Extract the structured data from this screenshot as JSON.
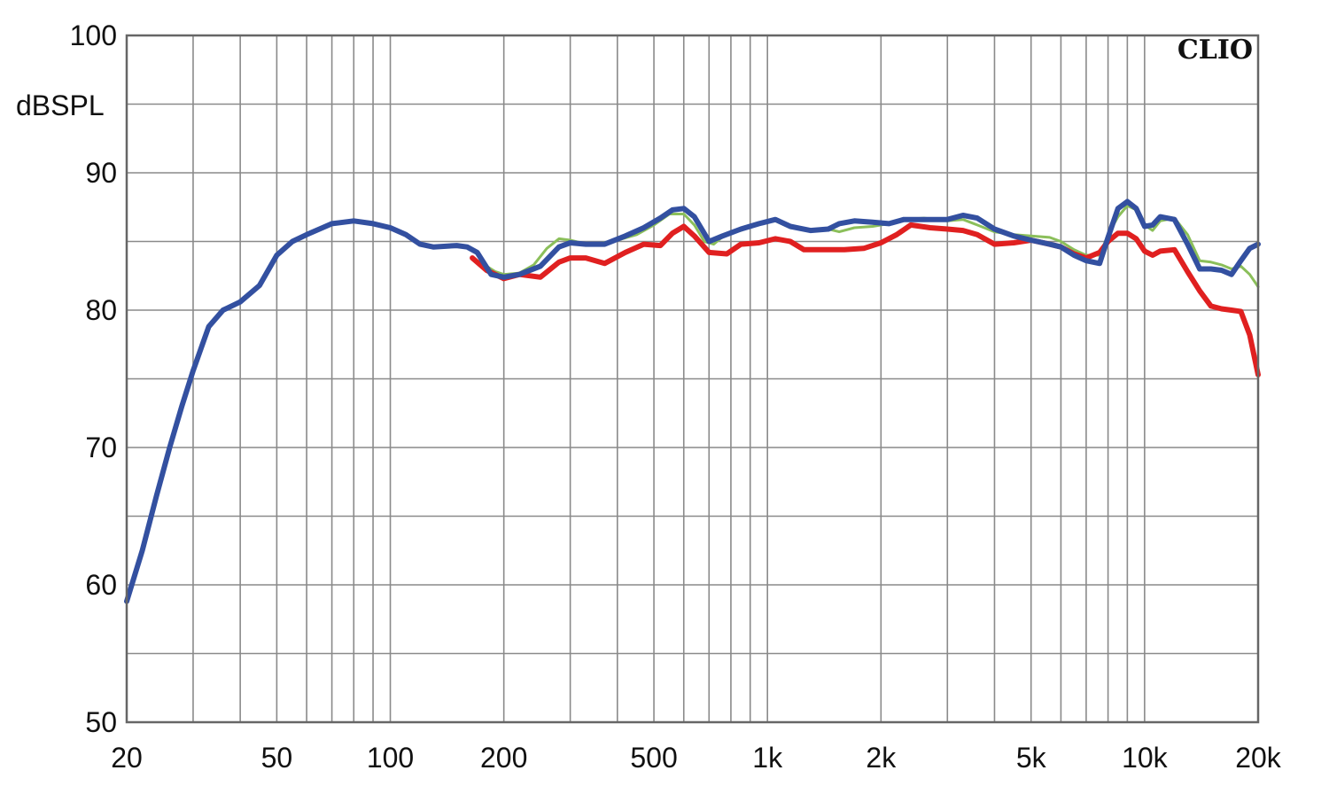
{
  "chart_data": {
    "type": "line",
    "brand_label": "CLIO",
    "ylabel": "dBSPL",
    "xlabel": "",
    "x_scale": "log",
    "xlim": [
      20,
      20000
    ],
    "ylim": [
      50,
      100
    ],
    "grid": true,
    "x_ticks": [
      {
        "value": 20,
        "label": "20"
      },
      {
        "value": 50,
        "label": "50"
      },
      {
        "value": 100,
        "label": "100"
      },
      {
        "value": 200,
        "label": "200"
      },
      {
        "value": 500,
        "label": "500"
      },
      {
        "value": 1000,
        "label": "1k"
      },
      {
        "value": 2000,
        "label": "2k"
      },
      {
        "value": 5000,
        "label": "5k"
      },
      {
        "value": 10000,
        "label": "10k"
      },
      {
        "value": 20000,
        "label": "20k"
      }
    ],
    "y_ticks": [
      {
        "value": 100,
        "label": "100"
      },
      {
        "value": 90,
        "label": "90"
      },
      {
        "value": 80,
        "label": "80"
      },
      {
        "value": 70,
        "label": "70"
      },
      {
        "value": 60,
        "label": "60"
      },
      {
        "value": 50,
        "label": "50"
      }
    ],
    "series": [
      {
        "color": "#8bbf5a",
        "width": 3,
        "points": [
          [
            180,
            83.2
          ],
          [
            190,
            82.8
          ],
          [
            200,
            82.6
          ],
          [
            220,
            82.7
          ],
          [
            240,
            83.3
          ],
          [
            260,
            84.5
          ],
          [
            280,
            85.2
          ],
          [
            300,
            85.1
          ],
          [
            320,
            84.9
          ],
          [
            350,
            84.8
          ],
          [
            400,
            85.1
          ],
          [
            450,
            85.5
          ],
          [
            500,
            86.2
          ],
          [
            550,
            87.0
          ],
          [
            600,
            87.0
          ],
          [
            640,
            86.2
          ],
          [
            680,
            85.0
          ],
          [
            720,
            84.8
          ],
          [
            780,
            85.6
          ],
          [
            850,
            85.8
          ],
          [
            950,
            86.3
          ],
          [
            1050,
            86.5
          ],
          [
            1150,
            86.0
          ],
          [
            1300,
            85.8
          ],
          [
            1450,
            85.9
          ],
          [
            1550,
            85.7
          ],
          [
            1700,
            86.0
          ],
          [
            1900,
            86.1
          ],
          [
            2100,
            86.3
          ],
          [
            2300,
            86.6
          ],
          [
            2600,
            86.7
          ],
          [
            3000,
            86.5
          ],
          [
            3300,
            86.6
          ],
          [
            3600,
            86.2
          ],
          [
            4000,
            85.7
          ],
          [
            4500,
            85.5
          ],
          [
            5000,
            85.4
          ],
          [
            5600,
            85.3
          ],
          [
            6000,
            85.0
          ],
          [
            6500,
            84.4
          ],
          [
            7000,
            84.0
          ],
          [
            7600,
            84.0
          ],
          [
            8000,
            85.5
          ],
          [
            8500,
            86.8
          ],
          [
            9000,
            87.6
          ],
          [
            9500,
            87.3
          ],
          [
            10000,
            86.2
          ],
          [
            10500,
            85.8
          ],
          [
            11000,
            86.5
          ],
          [
            12000,
            86.7
          ],
          [
            13000,
            85.5
          ],
          [
            14000,
            83.6
          ],
          [
            15000,
            83.5
          ],
          [
            16000,
            83.3
          ],
          [
            17000,
            83.0
          ],
          [
            18000,
            83.2
          ],
          [
            19000,
            82.6
          ],
          [
            20000,
            81.7
          ]
        ]
      },
      {
        "color": "#e02020",
        "width": 6,
        "points": [
          [
            165,
            83.8
          ],
          [
            180,
            82.9
          ],
          [
            200,
            82.3
          ],
          [
            220,
            82.6
          ],
          [
            250,
            82.4
          ],
          [
            280,
            83.5
          ],
          [
            300,
            83.8
          ],
          [
            330,
            83.8
          ],
          [
            370,
            83.4
          ],
          [
            420,
            84.2
          ],
          [
            470,
            84.8
          ],
          [
            520,
            84.7
          ],
          [
            560,
            85.6
          ],
          [
            600,
            86.1
          ],
          [
            640,
            85.4
          ],
          [
            700,
            84.2
          ],
          [
            780,
            84.1
          ],
          [
            850,
            84.8
          ],
          [
            950,
            84.9
          ],
          [
            1050,
            85.2
          ],
          [
            1150,
            85.0
          ],
          [
            1250,
            84.4
          ],
          [
            1400,
            84.4
          ],
          [
            1600,
            84.4
          ],
          [
            1800,
            84.5
          ],
          [
            2000,
            84.9
          ],
          [
            2200,
            85.5
          ],
          [
            2400,
            86.2
          ],
          [
            2700,
            86.0
          ],
          [
            3000,
            85.9
          ],
          [
            3300,
            85.8
          ],
          [
            3600,
            85.5
          ],
          [
            4000,
            84.8
          ],
          [
            4500,
            84.9
          ],
          [
            5000,
            85.1
          ],
          [
            5600,
            84.8
          ],
          [
            6000,
            84.6
          ],
          [
            6500,
            84.1
          ],
          [
            7000,
            83.8
          ],
          [
            7600,
            84.2
          ],
          [
            8000,
            85.0
          ],
          [
            8500,
            85.6
          ],
          [
            9000,
            85.6
          ],
          [
            9500,
            85.2
          ],
          [
            10000,
            84.3
          ],
          [
            10500,
            84.0
          ],
          [
            11000,
            84.3
          ],
          [
            12000,
            84.4
          ],
          [
            13000,
            82.8
          ],
          [
            14000,
            81.4
          ],
          [
            15000,
            80.3
          ],
          [
            16000,
            80.1
          ],
          [
            17000,
            80.0
          ],
          [
            18000,
            79.9
          ],
          [
            19000,
            78.2
          ],
          [
            20000,
            75.3
          ]
        ]
      },
      {
        "color": "#3350a0",
        "width": 6,
        "points": [
          [
            20,
            58.8
          ],
          [
            22,
            62.5
          ],
          [
            24,
            66.5
          ],
          [
            26,
            70.0
          ],
          [
            28,
            73.0
          ],
          [
            30,
            75.6
          ],
          [
            33,
            78.8
          ],
          [
            36,
            80.0
          ],
          [
            40,
            80.6
          ],
          [
            45,
            81.8
          ],
          [
            50,
            84.0
          ],
          [
            55,
            85.0
          ],
          [
            60,
            85.5
          ],
          [
            70,
            86.3
          ],
          [
            80,
            86.5
          ],
          [
            90,
            86.3
          ],
          [
            100,
            86.0
          ],
          [
            110,
            85.5
          ],
          [
            120,
            84.8
          ],
          [
            130,
            84.6
          ],
          [
            150,
            84.7
          ],
          [
            160,
            84.6
          ],
          [
            170,
            84.2
          ],
          [
            185,
            82.6
          ],
          [
            200,
            82.4
          ],
          [
            220,
            82.6
          ],
          [
            250,
            83.2
          ],
          [
            280,
            84.6
          ],
          [
            300,
            84.9
          ],
          [
            330,
            84.8
          ],
          [
            370,
            84.8
          ],
          [
            420,
            85.4
          ],
          [
            470,
            86.0
          ],
          [
            520,
            86.7
          ],
          [
            560,
            87.3
          ],
          [
            600,
            87.4
          ],
          [
            640,
            86.8
          ],
          [
            700,
            85.0
          ],
          [
            760,
            85.4
          ],
          [
            850,
            85.9
          ],
          [
            950,
            86.3
          ],
          [
            1050,
            86.6
          ],
          [
            1150,
            86.1
          ],
          [
            1300,
            85.8
          ],
          [
            1450,
            85.9
          ],
          [
            1550,
            86.3
          ],
          [
            1700,
            86.5
          ],
          [
            1900,
            86.4
          ],
          [
            2100,
            86.3
          ],
          [
            2300,
            86.6
          ],
          [
            2600,
            86.6
          ],
          [
            3000,
            86.6
          ],
          [
            3300,
            86.9
          ],
          [
            3600,
            86.7
          ],
          [
            4000,
            85.9
          ],
          [
            4500,
            85.4
          ],
          [
            5000,
            85.1
          ],
          [
            5600,
            84.8
          ],
          [
            6000,
            84.6
          ],
          [
            6500,
            84.0
          ],
          [
            7000,
            83.6
          ],
          [
            7600,
            83.4
          ],
          [
            8000,
            85.3
          ],
          [
            8500,
            87.4
          ],
          [
            9000,
            87.9
          ],
          [
            9500,
            87.4
          ],
          [
            10000,
            86.1
          ],
          [
            10500,
            86.2
          ],
          [
            11000,
            86.8
          ],
          [
            12000,
            86.6
          ],
          [
            13000,
            84.8
          ],
          [
            14000,
            83.0
          ],
          [
            15000,
            83.0
          ],
          [
            16000,
            82.9
          ],
          [
            17000,
            82.6
          ],
          [
            18000,
            83.6
          ],
          [
            19000,
            84.5
          ],
          [
            20000,
            84.8
          ]
        ]
      }
    ]
  }
}
